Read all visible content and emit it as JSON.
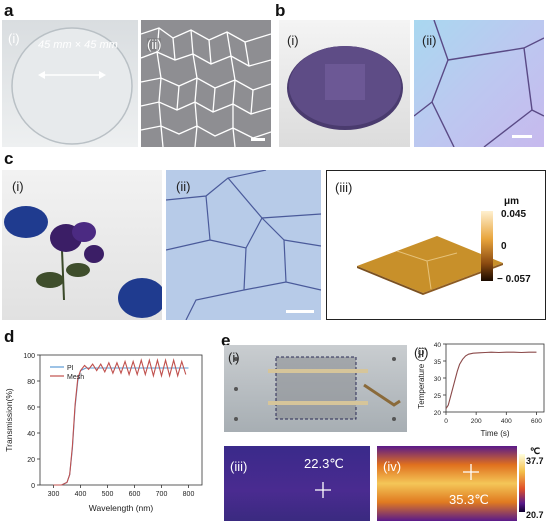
{
  "panels": {
    "a": {
      "label": "a",
      "sub_i": "(i)",
      "sub_ii": "(ii)",
      "dimension": "45 mm × 45 mm"
    },
    "b": {
      "label": "b",
      "sub_i": "(i)",
      "sub_ii": "(ii)"
    },
    "c": {
      "label": "c",
      "sub_i": "(i)",
      "sub_ii": "(ii)",
      "sub_iii": "(iii)",
      "colorbar": {
        "unit": "μm",
        "max": "0.045",
        "mid": "0",
        "min": "− 0.057"
      }
    },
    "d": {
      "label": "d"
    },
    "e": {
      "label": "e",
      "sub_i": "(i)",
      "sub_ii": "(ii)",
      "sub_iii": "(iii)",
      "sub_iv": "(iv)",
      "temp_left": "22.3℃",
      "temp_right": "35.3℃",
      "colorbar": {
        "unit": "℃",
        "max": "37.7",
        "min": "20.7"
      }
    }
  },
  "chart_data": [
    {
      "type": "line",
      "panel": "d",
      "xlabel": "Wavelength (nm)",
      "ylabel": "Transmission(%)",
      "xlim": [
        250,
        850
      ],
      "ylim": [
        0,
        100
      ],
      "xticks": [
        300,
        400,
        500,
        600,
        700,
        800
      ],
      "yticks": [
        0,
        20,
        40,
        60,
        80,
        100
      ],
      "legend_position": "top-left",
      "series": [
        {
          "name": "PI",
          "color": "#5b9bd5",
          "x": [
            300,
            330,
            350,
            360,
            370,
            380,
            390,
            400,
            420,
            450,
            500,
            550,
            600,
            650,
            700,
            750,
            800
          ],
          "y": [
            0,
            0,
            2,
            8,
            28,
            60,
            80,
            88,
            90,
            90,
            90,
            90,
            90,
            90,
            90,
            90,
            90
          ]
        },
        {
          "name": "Mesh",
          "color": "#c0504d",
          "x": [
            300,
            330,
            350,
            360,
            370,
            380,
            390,
            400,
            415,
            430,
            445,
            460,
            475,
            490,
            505,
            520,
            535,
            550,
            565,
            580,
            595,
            610,
            625,
            640,
            655,
            670,
            685,
            700,
            715,
            730,
            745,
            760,
            775,
            790
          ],
          "y": [
            0,
            0,
            2,
            8,
            30,
            62,
            82,
            88,
            92,
            89,
            93,
            88,
            93,
            87,
            94,
            86,
            94,
            86,
            95,
            85,
            95,
            85,
            96,
            85,
            96,
            84,
            96,
            84,
            96,
            84,
            96,
            84,
            95,
            85
          ]
        }
      ]
    },
    {
      "type": "line",
      "panel": "e-ii",
      "xlabel": "Time (s)",
      "ylabel": "Temperature (℃)",
      "xlim": [
        0,
        650
      ],
      "ylim": [
        20,
        40
      ],
      "xticks": [
        0,
        200,
        400,
        600
      ],
      "yticks": [
        20,
        25,
        30,
        35,
        40
      ],
      "series": [
        {
          "name": "",
          "color": "#8b4a4a",
          "x": [
            0,
            15,
            30,
            45,
            60,
            75,
            90,
            110,
            130,
            150,
            180,
            220,
            260,
            300,
            350,
            400,
            450,
            500,
            550,
            600
          ],
          "y": [
            21,
            22,
            24.5,
            27,
            29.5,
            32,
            34,
            35.5,
            36.5,
            37,
            37.3,
            37.4,
            37.5,
            37.6,
            37.5,
            37.6,
            37.6,
            37.5,
            37.6,
            37.6
          ]
        }
      ]
    }
  ]
}
